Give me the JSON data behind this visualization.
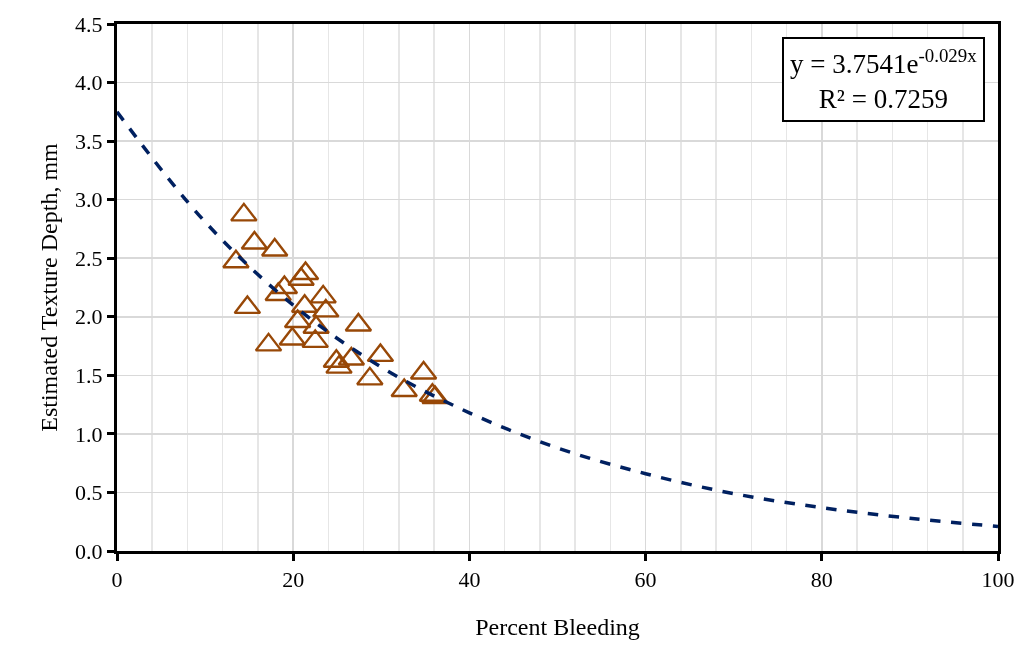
{
  "chart_data": {
    "type": "scatter",
    "xlabel": "Percent Bleeding",
    "ylabel": "Estimated Texture Depth, mm",
    "xlim": [
      0,
      100
    ],
    "xticks": [
      0,
      20,
      40,
      60,
      80,
      100
    ],
    "ylim": [
      0,
      4.5
    ],
    "yticks": [
      {
        "value": 0,
        "label": "0.0"
      },
      {
        "value": 0.5,
        "label": "0.5"
      },
      {
        "value": 1,
        "label": "1.0"
      },
      {
        "value": 1.5,
        "label": "1.5"
      },
      {
        "value": 2,
        "label": "2.0"
      },
      {
        "value": 2.5,
        "label": "2.5"
      },
      {
        "value": 3,
        "label": "3.0"
      },
      {
        "value": 3.5,
        "label": "3.5"
      },
      {
        "value": 4,
        "label": "4.0"
      },
      {
        "value": 4.5,
        "label": "4.5"
      }
    ],
    "grid": true,
    "annotations": [
      "y = 3.7541e$^{-0.029x}$",
      "R² = 0.7259"
    ],
    "series": [
      {
        "color": "#984807",
        "marker": "triangle",
        "x": [
          14.4,
          15.6,
          17.9,
          13.5,
          14.8,
          21.4,
          20.9,
          19.0,
          18.3,
          23.4,
          21.3,
          23.7,
          20.5,
          22.6,
          27.4,
          17.2,
          19.9,
          22.5,
          24.9,
          25.2,
          26.6,
          29.9,
          28.7,
          32.6,
          34.8,
          35.8,
          36.1
        ],
        "values": [
          2.87,
          2.63,
          2.57,
          2.47,
          2.08,
          2.37,
          2.32,
          2.25,
          2.19,
          2.17,
          2.09,
          2.05,
          1.96,
          1.91,
          1.93,
          1.76,
          1.81,
          1.79,
          1.62,
          1.57,
          1.64,
          1.67,
          1.47,
          1.37,
          1.52,
          1.33,
          1.31
        ]
      },
      {
        "type": "line",
        "color": "#002060",
        "line_style": "dashed",
        "marker": "none",
        "x": [
          0,
          10,
          20,
          30,
          40,
          50,
          60,
          70,
          80,
          90,
          100
        ],
        "values": [
          3.75,
          2.81,
          2.1,
          1.57,
          1.18,
          0.88,
          0.66,
          0.49,
          0.37,
          0.28,
          0.21
        ]
      }
    ]
  }
}
